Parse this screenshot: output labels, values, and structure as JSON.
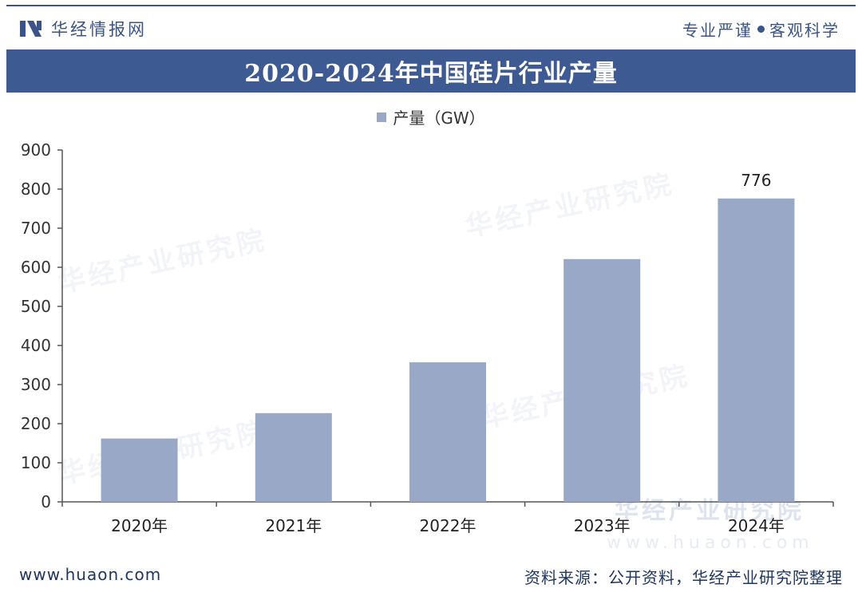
{
  "header": {
    "brand_name": "华经情报网",
    "slogan_left": "专业严谨",
    "slogan_right": "客观科学"
  },
  "watermarks": {
    "text": "华经产业研究院",
    "site": "www.huaon.com"
  },
  "footer": {
    "website": "www.huaon.com",
    "source": "资料来源：公开资料，华经产业研究院整理"
  },
  "colors": {
    "brand": "#3d5a93",
    "bar": "#98a8c6",
    "axis": "#555555"
  },
  "chart_data": {
    "type": "bar",
    "title": "2020-2024年中国硅片行业产量",
    "categories": [
      "2020年",
      "2021年",
      "2022年",
      "2023年",
      "2024年"
    ],
    "series": [
      {
        "name": "产量（GW）",
        "values": [
          162,
          227,
          357,
          621,
          776
        ],
        "labels": [
          "",
          "",
          "",
          "",
          "776"
        ]
      }
    ],
    "ylim": [
      0,
      900
    ],
    "yticks": [
      0,
      100,
      200,
      300,
      400,
      500,
      600,
      700,
      800,
      900
    ],
    "grid": false,
    "legend": "top-center"
  }
}
